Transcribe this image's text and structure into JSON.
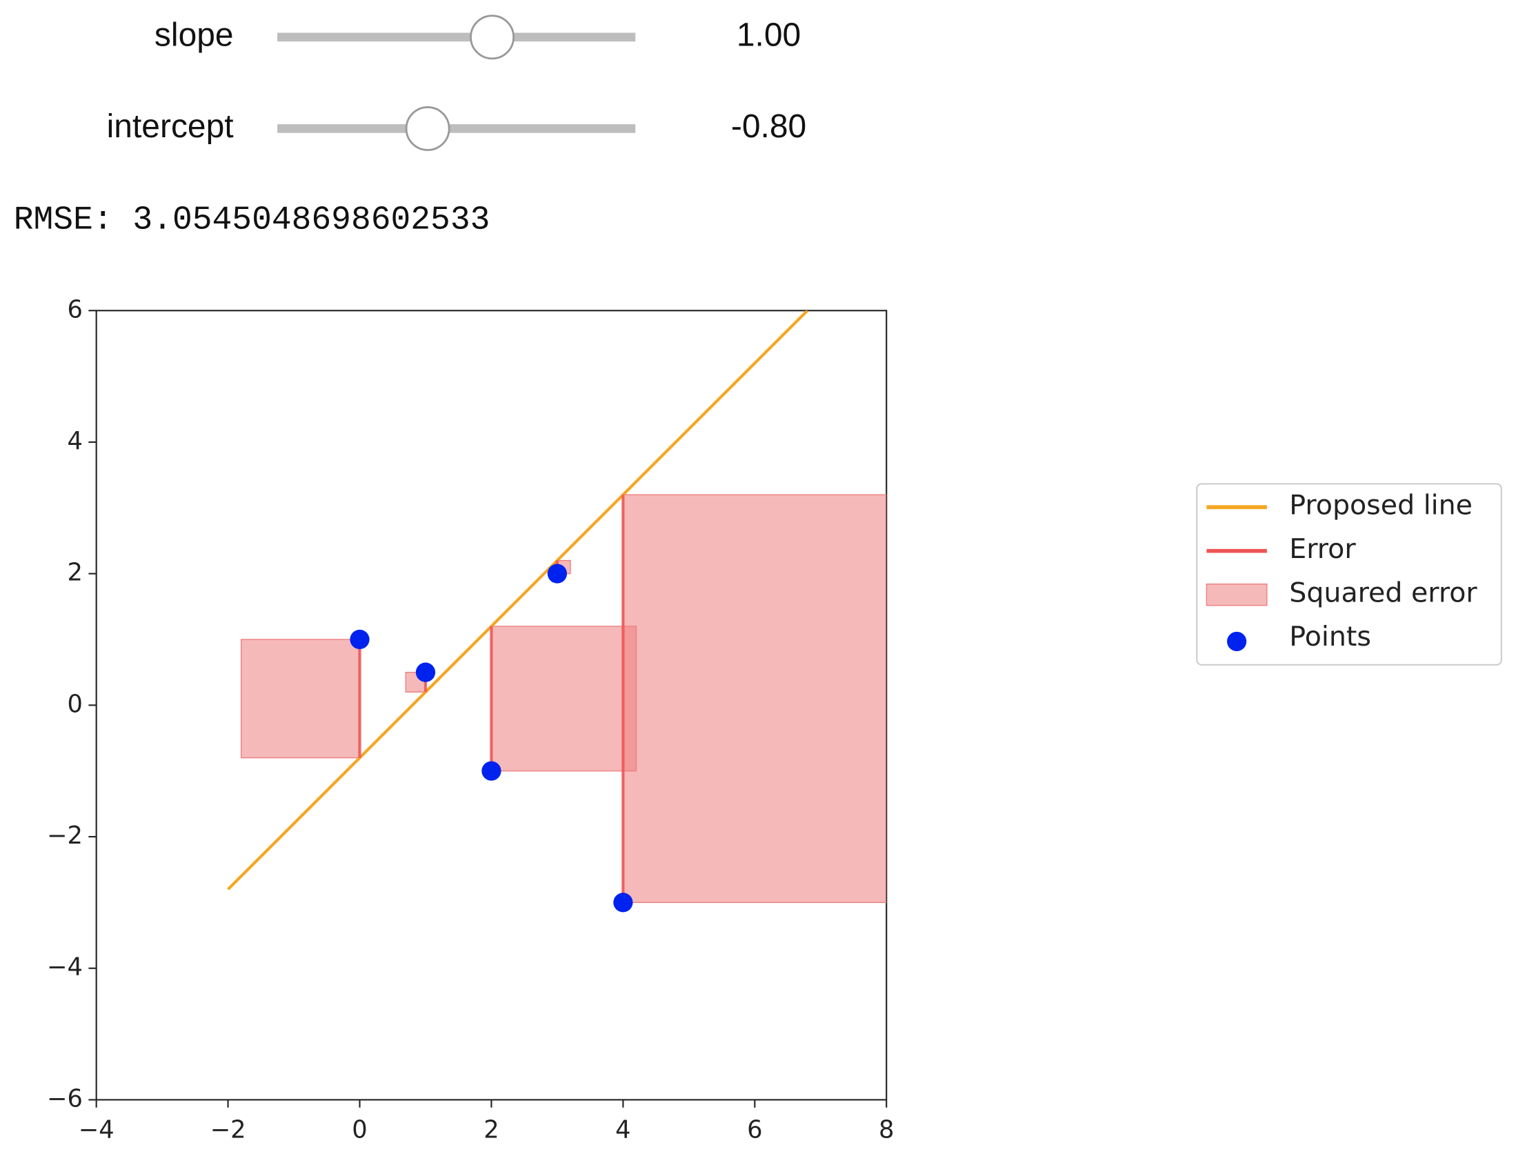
{
  "widgets": {
    "sliders": [
      {
        "label": "slope",
        "value": {
          "value": 1,
          "label": "1.00"
        },
        "range": [
          -5,
          5
        ]
      },
      {
        "label": "intercept",
        "value": {
          "value": -0.8,
          "label": "-0.80"
        },
        "range": [
          -5,
          5
        ]
      }
    ],
    "output": "RMSE: 3.0545048698602533"
  },
  "chart_data": {
    "type": "scatter",
    "x": [
      0,
      1,
      2,
      3,
      4
    ],
    "series": [
      {
        "name": "Proposed line",
        "color": "#f5a623",
        "x": [
          -2,
          6.8
        ],
        "values": [
          -2.8,
          6
        ]
      },
      {
        "name": "Error",
        "color": "#ee5555",
        "values": [
          -0.8,
          0.2,
          1.2,
          2.2,
          3.2
        ]
      },
      {
        "name": "Squared error",
        "color": "#ee8080"
      },
      {
        "name": "Points",
        "color": "#0022ee",
        "values": [
          1,
          0.5,
          -1,
          2,
          -3
        ]
      }
    ],
    "xlim": [
      -4,
      8
    ],
    "ylim": [
      -6,
      6
    ],
    "xticks": [
      {
        "value": -4,
        "label": "−4"
      },
      {
        "value": -2,
        "label": "−2"
      },
      0,
      2,
      4,
      6,
      8
    ],
    "yticks": [
      {
        "value": -6,
        "label": "−6"
      },
      {
        "value": -4,
        "label": "−4"
      },
      {
        "value": -2,
        "label": "−2"
      },
      0,
      2,
      4,
      6
    ],
    "legend": "outside right"
  }
}
